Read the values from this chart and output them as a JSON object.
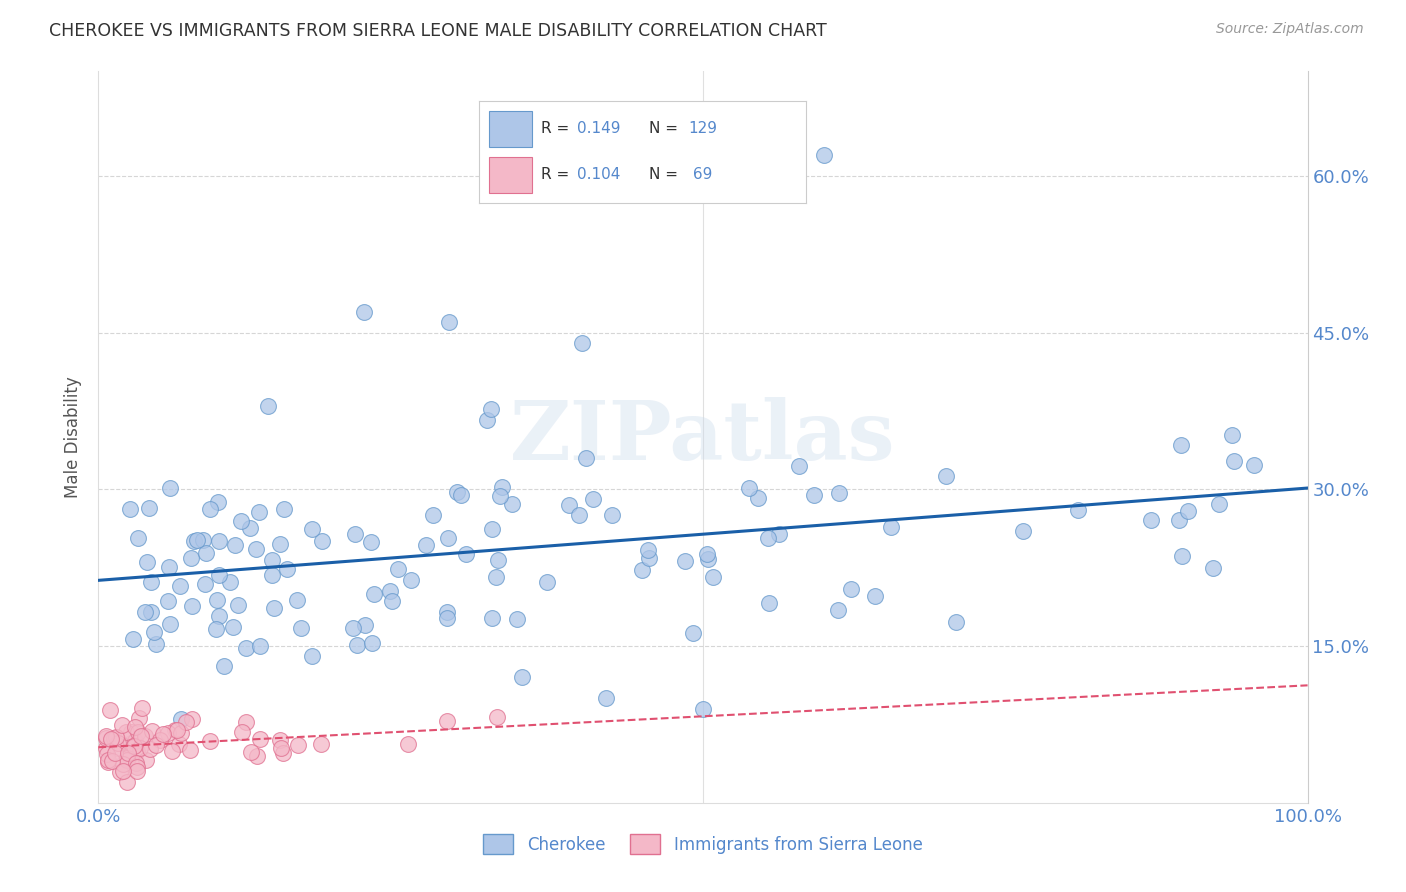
{
  "title": "CHEROKEE VS IMMIGRANTS FROM SIERRA LEONE MALE DISABILITY CORRELATION CHART",
  "source": "Source: ZipAtlas.com",
  "ylabel_label": "Male Disability",
  "cherokee_color": "#aec6e8",
  "cherokee_edge_color": "#6699cc",
  "sierra_leone_color": "#f4b8c8",
  "sierra_leone_edge_color": "#e07090",
  "trend_cherokee_color": "#1a5fa8",
  "trend_sierra_leone_color": "#e05070",
  "background_color": "#ffffff",
  "grid_color": "#cccccc",
  "watermark": "ZIPatlas",
  "cherokee_R": 0.149,
  "cherokee_N": 129,
  "sierra_leone_R": 0.104,
  "sierra_leone_N": 69,
  "xlim": [
    0.0,
    1.0
  ],
  "ylim": [
    0.0,
    0.7
  ],
  "title_color": "#333333",
  "axis_tick_color": "#5588cc",
  "ylabel_color": "#555555",
  "source_color": "#999999",
  "legend_R_color": "#333333",
  "legend_N_color": "#5588cc"
}
